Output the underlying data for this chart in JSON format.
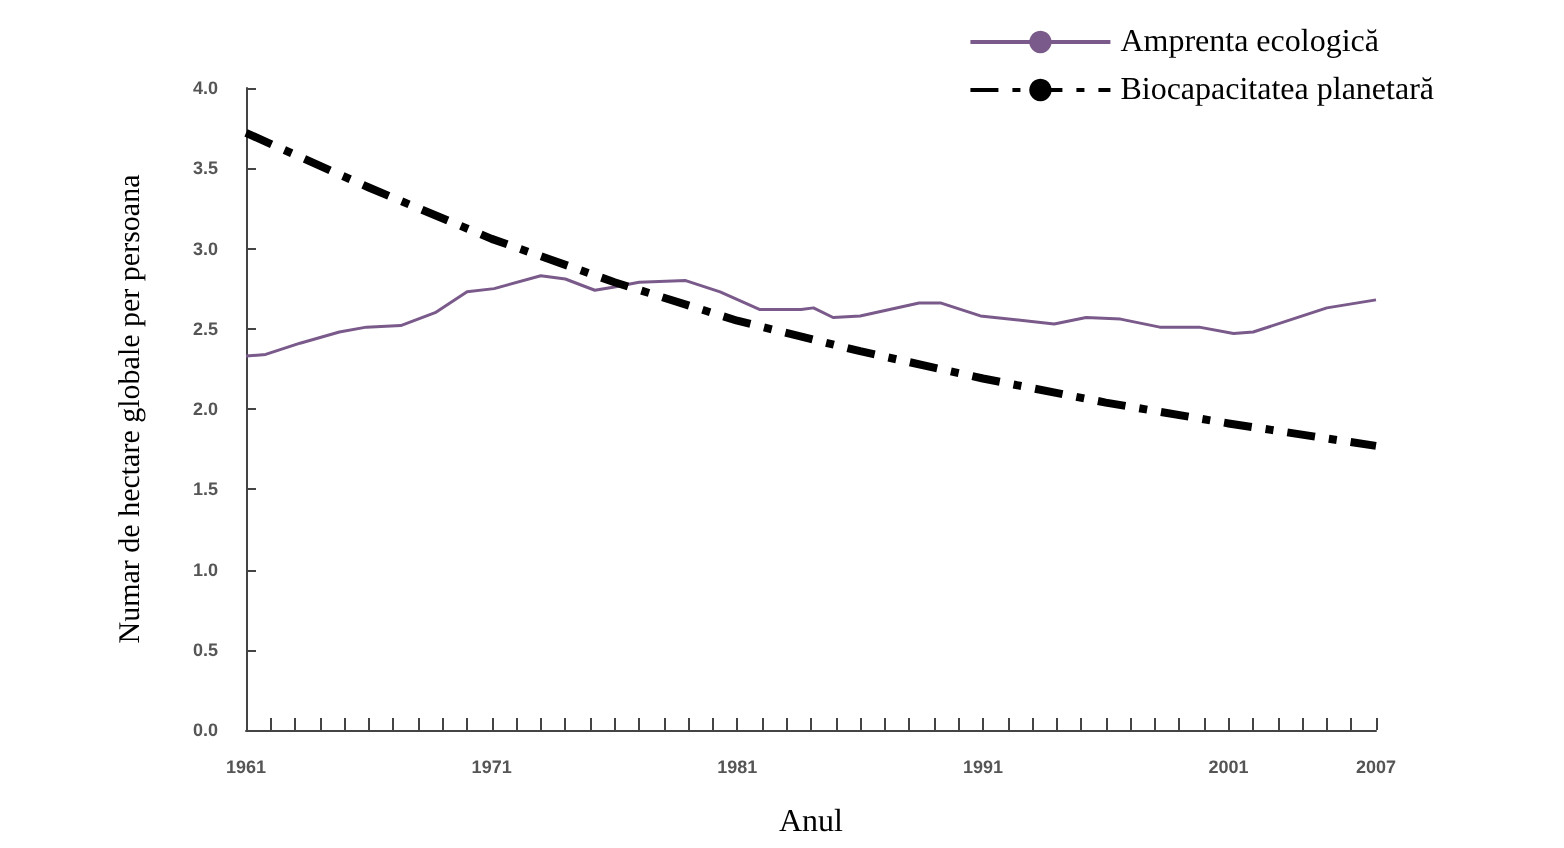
{
  "chart_data": {
    "type": "line",
    "xlabel": "Anul",
    "ylabel": "Numar de hectare globale per persoana",
    "series": [
      {
        "name": "Amprenta ecologică",
        "color": "#7a5a8a",
        "line_style": "solid",
        "x": [
          1961,
          1961.8,
          1963.2,
          1964.8,
          1965.9,
          1967.3,
          1968.7,
          1970,
          1971.1,
          1973,
          1974,
          1975.2,
          1976,
          1977,
          1978.9,
          1980.3,
          1981.9,
          1983.6,
          1984.1,
          1984.9,
          1986,
          1988.4,
          1989.3,
          1990.9,
          1993.9,
          1995.2,
          1996.6,
          1998.2,
          1999.8,
          2001.2,
          2002,
          2003.6,
          2005,
          2007
        ],
        "values": [
          2.33,
          2.34,
          2.41,
          2.48,
          2.51,
          2.52,
          2.6,
          2.73,
          2.75,
          2.83,
          2.81,
          2.74,
          2.76,
          2.79,
          2.8,
          2.73,
          2.62,
          2.62,
          2.63,
          2.57,
          2.58,
          2.66,
          2.66,
          2.58,
          2.53,
          2.57,
          2.56,
          2.51,
          2.51,
          2.47,
          2.48,
          2.56,
          2.63,
          2.68
        ]
      },
      {
        "name": "Biocapacitatea planetară",
        "color": "#000000",
        "line_style": "dashed",
        "x": [
          1961,
          1966,
          1971,
          1976,
          1981,
          1986,
          1991,
          1996,
          2001,
          2007
        ],
        "values": [
          3.72,
          3.38,
          3.06,
          2.79,
          2.55,
          2.36,
          2.19,
          2.04,
          1.91,
          1.77
        ]
      }
    ],
    "xlim": [
      1961,
      2007
    ],
    "xticks": [
      1961,
      {
        "value": 1962,
        "label": null
      },
      {
        "value": 1963,
        "label": null
      },
      {
        "value": 1964,
        "label": null
      },
      {
        "value": 1965,
        "label": null
      },
      {
        "value": 1966,
        "label": null
      },
      {
        "value": 1967,
        "label": null
      },
      {
        "value": 1968,
        "label": null
      },
      {
        "value": 1969,
        "label": null
      },
      {
        "value": 1970,
        "label": null
      },
      1971,
      {
        "value": 1972,
        "label": null
      },
      {
        "value": 1973,
        "label": null
      },
      {
        "value": 1974,
        "label": null
      },
      {
        "value": 1975,
        "label": null
      },
      {
        "value": 1976,
        "label": null
      },
      {
        "value": 1977,
        "label": null
      },
      {
        "value": 1978,
        "label": null
      },
      {
        "value": 1979,
        "label": null
      },
      {
        "value": 1980,
        "label": null
      },
      1981,
      {
        "value": 1982,
        "label": null
      },
      {
        "value": 1983,
        "label": null
      },
      {
        "value": 1984,
        "label": null
      },
      {
        "value": 1985,
        "label": null
      },
      {
        "value": 1986,
        "label": null
      },
      {
        "value": 1987,
        "label": null
      },
      {
        "value": 1988,
        "label": null
      },
      {
        "value": 1989,
        "label": null
      },
      {
        "value": 1990,
        "label": null
      },
      1991,
      {
        "value": 1992,
        "label": null
      },
      {
        "value": 1993,
        "label": null
      },
      {
        "value": 1994,
        "label": null
      },
      {
        "value": 1995,
        "label": null
      },
      {
        "value": 1996,
        "label": null
      },
      {
        "value": 1997,
        "label": null
      },
      {
        "value": 1998,
        "label": null
      },
      {
        "value": 1999,
        "label": null
      },
      {
        "value": 2000,
        "label": null
      },
      2001,
      {
        "value": 2002,
        "label": null
      },
      {
        "value": 2003,
        "label": null
      },
      {
        "value": 2004,
        "label": null
      },
      {
        "value": 2005,
        "label": null
      },
      {
        "value": 2006,
        "label": null
      },
      2007
    ],
    "ylim": [
      0,
      4
    ],
    "yticks": [
      {
        "value": 0,
        "label": "0.0"
      },
      {
        "value": 0.5,
        "label": "0.5"
      },
      {
        "value": 1,
        "label": "1.0"
      },
      {
        "value": 1.5,
        "label": "1.5"
      },
      {
        "value": 2,
        "label": "2.0"
      },
      {
        "value": 2.5,
        "label": "2.5"
      },
      {
        "value": 3,
        "label": "3.0"
      },
      {
        "value": 3.5,
        "label": "3.5"
      },
      {
        "value": 4,
        "label": "4.0"
      }
    ],
    "grid": false,
    "legend": "top right",
    "marker": "none"
  }
}
